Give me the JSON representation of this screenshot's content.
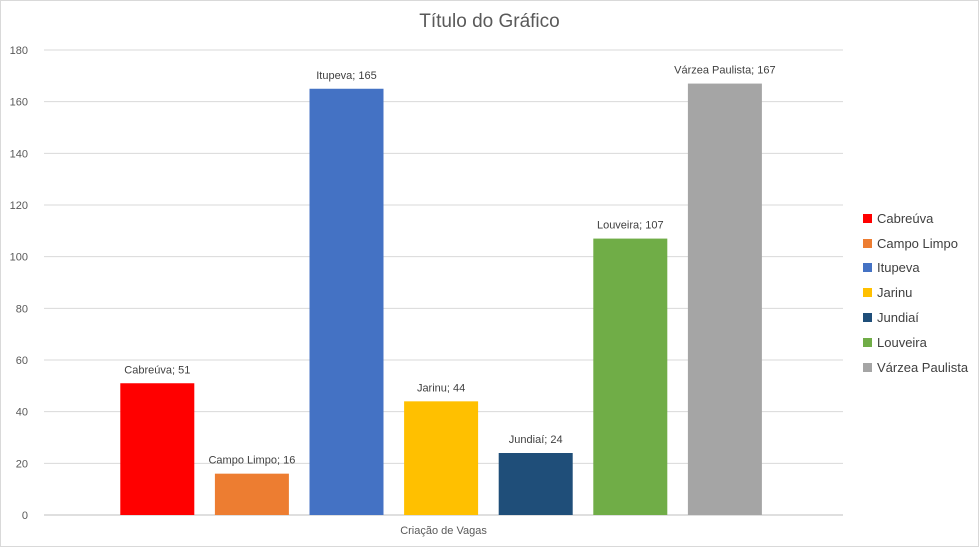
{
  "chart_data": {
    "type": "bar",
    "title": "Título do Gráfico",
    "xlabel": "Criação de Vagas",
    "ylabel": "",
    "ylim": [
      0,
      180
    ],
    "yticks": [
      0,
      20,
      40,
      60,
      80,
      100,
      120,
      140,
      160,
      180
    ],
    "grid": true,
    "legend_position": "right",
    "series": [
      {
        "name": "Cabreúva",
        "value": 51,
        "label": "Cabreúva; 51",
        "color": "#ff0000"
      },
      {
        "name": "Campo Limpo",
        "value": 16,
        "label": "Campo Limpo; 16",
        "color": "#ed7d31"
      },
      {
        "name": "Itupeva",
        "value": 165,
        "label": "Itupeva; 165",
        "color": "#4472c4"
      },
      {
        "name": "Jarinu",
        "value": 44,
        "label": "Jarinu; 44",
        "color": "#ffc000"
      },
      {
        "name": "Jundiaí",
        "value": 24,
        "label": "Jundiaí; 24",
        "color": "#1f4e79"
      },
      {
        "name": "Louveira",
        "value": 107,
        "label": "Louveira; 107",
        "color": "#70ad47"
      },
      {
        "name": "Várzea Paulista",
        "value": 167,
        "label": "Várzea Paulista; 167",
        "color": "#a5a5a5"
      }
    ]
  }
}
